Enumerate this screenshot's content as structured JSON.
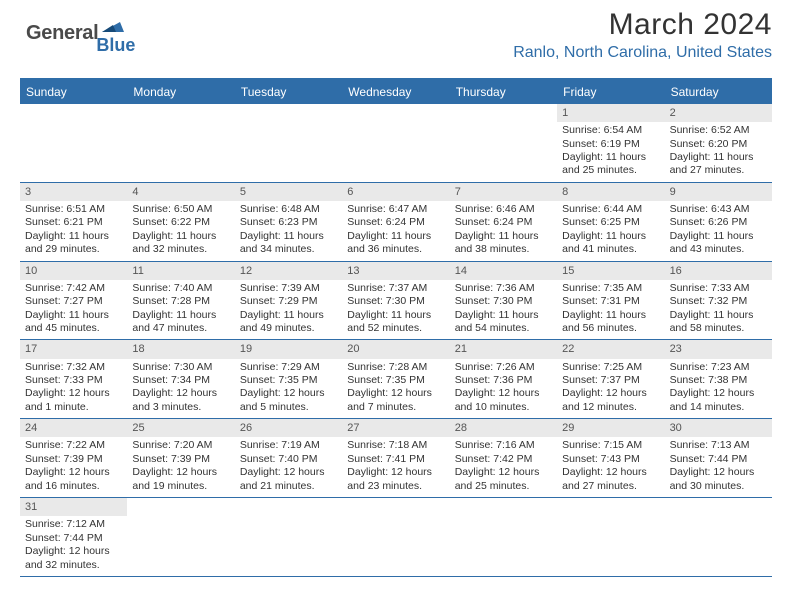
{
  "brand": {
    "general": "General",
    "blue": "Blue",
    "flag_color": "#2f6da8"
  },
  "title": "March 2024",
  "location": "Ranlo, North Carolina, United States",
  "colors": {
    "accent": "#2f6da8",
    "header_text": "#ffffff",
    "daynum_bg": "#e9e9e9",
    "text": "#333333",
    "page_bg": "#ffffff"
  },
  "layout": {
    "columns": 7,
    "rows": 6,
    "cell_fontsize_pt": 10.5
  },
  "day_headers": [
    "Sunday",
    "Monday",
    "Tuesday",
    "Wednesday",
    "Thursday",
    "Friday",
    "Saturday"
  ],
  "weeks": [
    [
      {
        "n": "",
        "sunrise": "",
        "sunset": "",
        "daylight1": "",
        "daylight2": ""
      },
      {
        "n": "",
        "sunrise": "",
        "sunset": "",
        "daylight1": "",
        "daylight2": ""
      },
      {
        "n": "",
        "sunrise": "",
        "sunset": "",
        "daylight1": "",
        "daylight2": ""
      },
      {
        "n": "",
        "sunrise": "",
        "sunset": "",
        "daylight1": "",
        "daylight2": ""
      },
      {
        "n": "",
        "sunrise": "",
        "sunset": "",
        "daylight1": "",
        "daylight2": ""
      },
      {
        "n": "1",
        "sunrise": "Sunrise: 6:54 AM",
        "sunset": "Sunset: 6:19 PM",
        "daylight1": "Daylight: 11 hours",
        "daylight2": "and 25 minutes."
      },
      {
        "n": "2",
        "sunrise": "Sunrise: 6:52 AM",
        "sunset": "Sunset: 6:20 PM",
        "daylight1": "Daylight: 11 hours",
        "daylight2": "and 27 minutes."
      }
    ],
    [
      {
        "n": "3",
        "sunrise": "Sunrise: 6:51 AM",
        "sunset": "Sunset: 6:21 PM",
        "daylight1": "Daylight: 11 hours",
        "daylight2": "and 29 minutes."
      },
      {
        "n": "4",
        "sunrise": "Sunrise: 6:50 AM",
        "sunset": "Sunset: 6:22 PM",
        "daylight1": "Daylight: 11 hours",
        "daylight2": "and 32 minutes."
      },
      {
        "n": "5",
        "sunrise": "Sunrise: 6:48 AM",
        "sunset": "Sunset: 6:23 PM",
        "daylight1": "Daylight: 11 hours",
        "daylight2": "and 34 minutes."
      },
      {
        "n": "6",
        "sunrise": "Sunrise: 6:47 AM",
        "sunset": "Sunset: 6:24 PM",
        "daylight1": "Daylight: 11 hours",
        "daylight2": "and 36 minutes."
      },
      {
        "n": "7",
        "sunrise": "Sunrise: 6:46 AM",
        "sunset": "Sunset: 6:24 PM",
        "daylight1": "Daylight: 11 hours",
        "daylight2": "and 38 minutes."
      },
      {
        "n": "8",
        "sunrise": "Sunrise: 6:44 AM",
        "sunset": "Sunset: 6:25 PM",
        "daylight1": "Daylight: 11 hours",
        "daylight2": "and 41 minutes."
      },
      {
        "n": "9",
        "sunrise": "Sunrise: 6:43 AM",
        "sunset": "Sunset: 6:26 PM",
        "daylight1": "Daylight: 11 hours",
        "daylight2": "and 43 minutes."
      }
    ],
    [
      {
        "n": "10",
        "sunrise": "Sunrise: 7:42 AM",
        "sunset": "Sunset: 7:27 PM",
        "daylight1": "Daylight: 11 hours",
        "daylight2": "and 45 minutes."
      },
      {
        "n": "11",
        "sunrise": "Sunrise: 7:40 AM",
        "sunset": "Sunset: 7:28 PM",
        "daylight1": "Daylight: 11 hours",
        "daylight2": "and 47 minutes."
      },
      {
        "n": "12",
        "sunrise": "Sunrise: 7:39 AM",
        "sunset": "Sunset: 7:29 PM",
        "daylight1": "Daylight: 11 hours",
        "daylight2": "and 49 minutes."
      },
      {
        "n": "13",
        "sunrise": "Sunrise: 7:37 AM",
        "sunset": "Sunset: 7:30 PM",
        "daylight1": "Daylight: 11 hours",
        "daylight2": "and 52 minutes."
      },
      {
        "n": "14",
        "sunrise": "Sunrise: 7:36 AM",
        "sunset": "Sunset: 7:30 PM",
        "daylight1": "Daylight: 11 hours",
        "daylight2": "and 54 minutes."
      },
      {
        "n": "15",
        "sunrise": "Sunrise: 7:35 AM",
        "sunset": "Sunset: 7:31 PM",
        "daylight1": "Daylight: 11 hours",
        "daylight2": "and 56 minutes."
      },
      {
        "n": "16",
        "sunrise": "Sunrise: 7:33 AM",
        "sunset": "Sunset: 7:32 PM",
        "daylight1": "Daylight: 11 hours",
        "daylight2": "and 58 minutes."
      }
    ],
    [
      {
        "n": "17",
        "sunrise": "Sunrise: 7:32 AM",
        "sunset": "Sunset: 7:33 PM",
        "daylight1": "Daylight: 12 hours",
        "daylight2": "and 1 minute."
      },
      {
        "n": "18",
        "sunrise": "Sunrise: 7:30 AM",
        "sunset": "Sunset: 7:34 PM",
        "daylight1": "Daylight: 12 hours",
        "daylight2": "and 3 minutes."
      },
      {
        "n": "19",
        "sunrise": "Sunrise: 7:29 AM",
        "sunset": "Sunset: 7:35 PM",
        "daylight1": "Daylight: 12 hours",
        "daylight2": "and 5 minutes."
      },
      {
        "n": "20",
        "sunrise": "Sunrise: 7:28 AM",
        "sunset": "Sunset: 7:35 PM",
        "daylight1": "Daylight: 12 hours",
        "daylight2": "and 7 minutes."
      },
      {
        "n": "21",
        "sunrise": "Sunrise: 7:26 AM",
        "sunset": "Sunset: 7:36 PM",
        "daylight1": "Daylight: 12 hours",
        "daylight2": "and 10 minutes."
      },
      {
        "n": "22",
        "sunrise": "Sunrise: 7:25 AM",
        "sunset": "Sunset: 7:37 PM",
        "daylight1": "Daylight: 12 hours",
        "daylight2": "and 12 minutes."
      },
      {
        "n": "23",
        "sunrise": "Sunrise: 7:23 AM",
        "sunset": "Sunset: 7:38 PM",
        "daylight1": "Daylight: 12 hours",
        "daylight2": "and 14 minutes."
      }
    ],
    [
      {
        "n": "24",
        "sunrise": "Sunrise: 7:22 AM",
        "sunset": "Sunset: 7:39 PM",
        "daylight1": "Daylight: 12 hours",
        "daylight2": "and 16 minutes."
      },
      {
        "n": "25",
        "sunrise": "Sunrise: 7:20 AM",
        "sunset": "Sunset: 7:39 PM",
        "daylight1": "Daylight: 12 hours",
        "daylight2": "and 19 minutes."
      },
      {
        "n": "26",
        "sunrise": "Sunrise: 7:19 AM",
        "sunset": "Sunset: 7:40 PM",
        "daylight1": "Daylight: 12 hours",
        "daylight2": "and 21 minutes."
      },
      {
        "n": "27",
        "sunrise": "Sunrise: 7:18 AM",
        "sunset": "Sunset: 7:41 PM",
        "daylight1": "Daylight: 12 hours",
        "daylight2": "and 23 minutes."
      },
      {
        "n": "28",
        "sunrise": "Sunrise: 7:16 AM",
        "sunset": "Sunset: 7:42 PM",
        "daylight1": "Daylight: 12 hours",
        "daylight2": "and 25 minutes."
      },
      {
        "n": "29",
        "sunrise": "Sunrise: 7:15 AM",
        "sunset": "Sunset: 7:43 PM",
        "daylight1": "Daylight: 12 hours",
        "daylight2": "and 27 minutes."
      },
      {
        "n": "30",
        "sunrise": "Sunrise: 7:13 AM",
        "sunset": "Sunset: 7:44 PM",
        "daylight1": "Daylight: 12 hours",
        "daylight2": "and 30 minutes."
      }
    ],
    [
      {
        "n": "31",
        "sunrise": "Sunrise: 7:12 AM",
        "sunset": "Sunset: 7:44 PM",
        "daylight1": "Daylight: 12 hours",
        "daylight2": "and 32 minutes."
      },
      {
        "n": "",
        "sunrise": "",
        "sunset": "",
        "daylight1": "",
        "daylight2": ""
      },
      {
        "n": "",
        "sunrise": "",
        "sunset": "",
        "daylight1": "",
        "daylight2": ""
      },
      {
        "n": "",
        "sunrise": "",
        "sunset": "",
        "daylight1": "",
        "daylight2": ""
      },
      {
        "n": "",
        "sunrise": "",
        "sunset": "",
        "daylight1": "",
        "daylight2": ""
      },
      {
        "n": "",
        "sunrise": "",
        "sunset": "",
        "daylight1": "",
        "daylight2": ""
      },
      {
        "n": "",
        "sunrise": "",
        "sunset": "",
        "daylight1": "",
        "daylight2": ""
      }
    ]
  ]
}
